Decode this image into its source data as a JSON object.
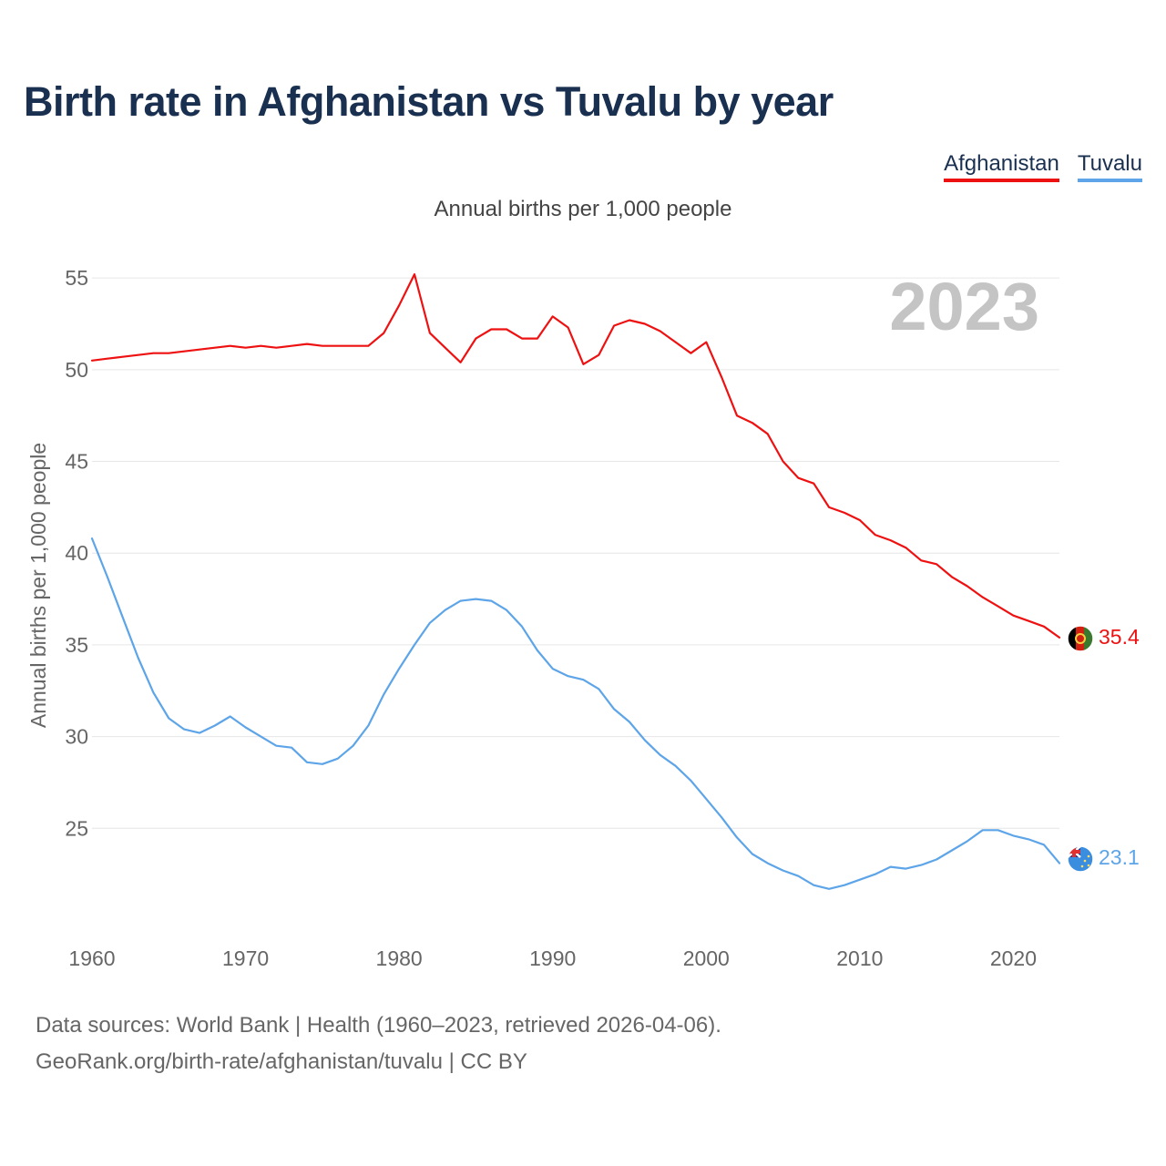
{
  "title": "Birth rate in Afghanistan vs Tuvalu by year",
  "subtitle": "Annual births per 1,000 people",
  "legend": [
    {
      "label": "Afghanistan",
      "color": "#ee1111"
    },
    {
      "label": "Tuvalu",
      "color": "#5da5e8"
    }
  ],
  "year_badge": "2023",
  "end_labels": {
    "afghanistan": "35.4",
    "tuvalu": "23.1"
  },
  "source_line1": "Data sources: World Bank | Health (1960–2023, retrieved 2026-04-06).",
  "source_line2": "GeoRank.org/birth-rate/afghanistan/tuvalu | CC BY",
  "chart_data": {
    "type": "line",
    "title": "Birth rate in Afghanistan vs Tuvalu by year",
    "xlabel": "",
    "ylabel": "Annual births per 1,000 people",
    "xlim": [
      1960,
      2023
    ],
    "ylim": [
      20,
      56
    ],
    "grid": true,
    "legend_position": "top-right",
    "x_ticks": [
      1960,
      1970,
      1980,
      1990,
      2000,
      2010,
      2020
    ],
    "y_ticks": [
      25,
      30,
      35,
      40,
      45,
      50,
      55
    ],
    "x": [
      1960,
      1961,
      1962,
      1963,
      1964,
      1965,
      1966,
      1967,
      1968,
      1969,
      1970,
      1971,
      1972,
      1973,
      1974,
      1975,
      1976,
      1977,
      1978,
      1979,
      1980,
      1981,
      1982,
      1983,
      1984,
      1985,
      1986,
      1987,
      1988,
      1989,
      1990,
      1991,
      1992,
      1993,
      1994,
      1995,
      1996,
      1997,
      1998,
      1999,
      2000,
      2001,
      2002,
      2003,
      2004,
      2005,
      2006,
      2007,
      2008,
      2009,
      2010,
      2011,
      2012,
      2013,
      2014,
      2015,
      2016,
      2017,
      2018,
      2019,
      2020,
      2021,
      2022,
      2023
    ],
    "series": [
      {
        "name": "Afghanistan",
        "color": "#ee1111",
        "values": [
          50.5,
          50.6,
          50.7,
          50.8,
          50.9,
          50.9,
          51.0,
          51.1,
          51.2,
          51.3,
          51.2,
          51.3,
          51.2,
          51.3,
          51.4,
          51.3,
          51.3,
          51.3,
          51.3,
          52.0,
          53.5,
          55.2,
          52.0,
          51.2,
          50.4,
          51.7,
          52.2,
          52.2,
          51.7,
          51.7,
          52.9,
          52.3,
          50.3,
          50.8,
          52.4,
          52.7,
          52.5,
          52.1,
          51.5,
          50.9,
          51.5,
          49.6,
          47.5,
          47.1,
          46.5,
          45.0,
          44.1,
          43.8,
          42.5,
          42.2,
          41.8,
          41.0,
          40.7,
          40.3,
          39.6,
          39.4,
          38.7,
          38.2,
          37.6,
          37.1,
          36.6,
          36.3,
          36.0,
          35.4
        ]
      },
      {
        "name": "Tuvalu",
        "color": "#5da5e8",
        "values": [
          40.8,
          38.7,
          36.5,
          34.3,
          32.4,
          31.0,
          30.4,
          30.2,
          30.6,
          31.1,
          30.5,
          30.0,
          29.5,
          29.4,
          28.6,
          28.5,
          28.8,
          29.5,
          30.6,
          32.3,
          33.7,
          35.0,
          36.2,
          36.9,
          37.4,
          37.5,
          37.4,
          36.9,
          36.0,
          34.7,
          33.7,
          33.3,
          33.1,
          32.6,
          31.5,
          30.8,
          29.8,
          29.0,
          28.4,
          27.6,
          26.6,
          25.6,
          24.5,
          23.6,
          23.1,
          22.7,
          22.4,
          21.9,
          21.7,
          21.9,
          22.2,
          22.5,
          22.9,
          22.8,
          23.0,
          23.3,
          23.8,
          24.3,
          24.9,
          24.9,
          24.6,
          24.4,
          24.1,
          23.1
        ]
      }
    ]
  }
}
